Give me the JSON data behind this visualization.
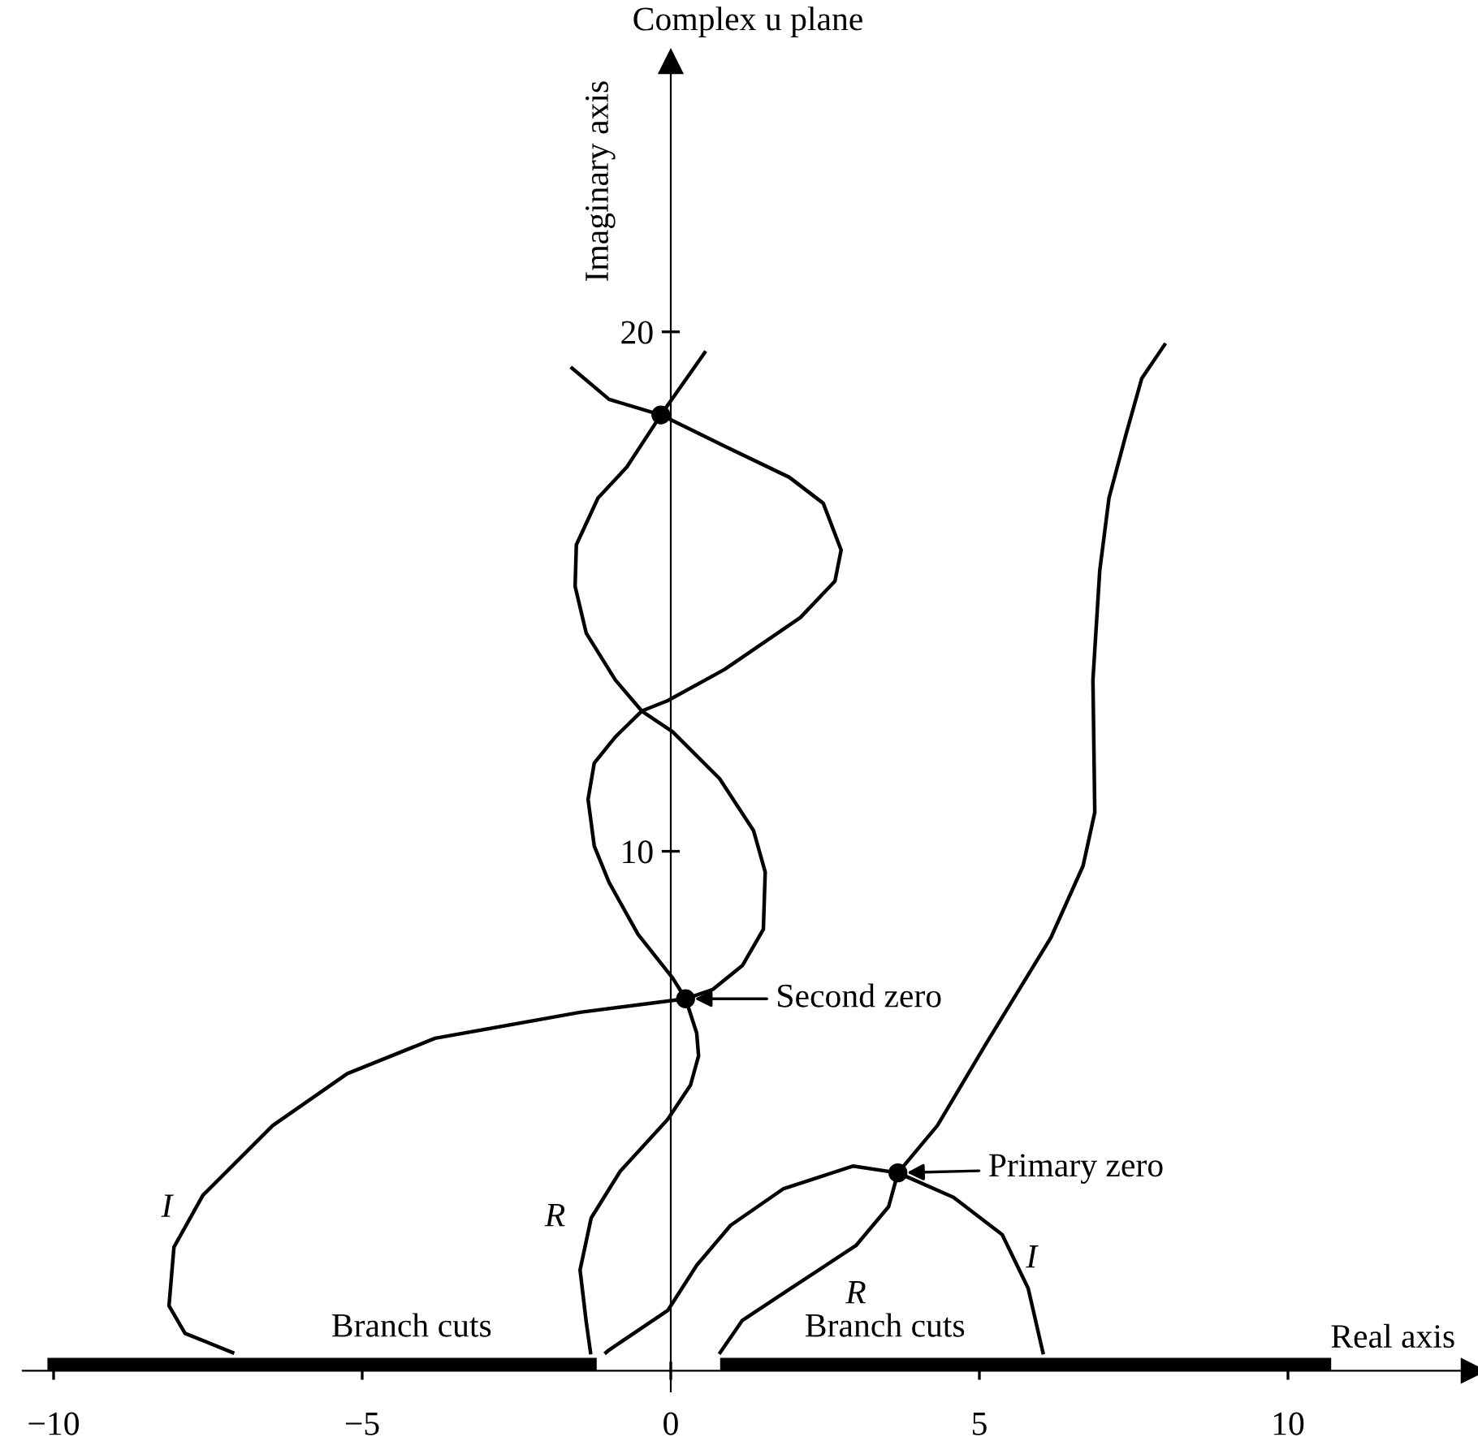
{
  "chart_data": {
    "type": "line",
    "title": "Complex u plane",
    "xlabel": "Real axis",
    "ylabel": "Imaginary axis",
    "xlim": [
      -10.5,
      13
    ],
    "ylim": [
      -0.4,
      25.2
    ],
    "xticks": [
      {
        "value": -10,
        "label": "−10"
      },
      {
        "value": -5,
        "label": "−5"
      },
      0,
      5,
      10
    ],
    "yticks": [
      10,
      20
    ],
    "series": [
      {
        "color": "#000000",
        "x": [
          -1.6,
          -1.0,
          -0.16,
          0.87,
          1.92,
          2.47,
          2.76,
          2.66,
          2.1,
          0.87,
          -0.05,
          -0.47,
          -0.9,
          -1.24,
          -1.34,
          -1.24,
          -1.0,
          -0.53,
          0.03,
          0.24,
          0.42,
          0.45,
          0.32,
          -0.05,
          -0.82,
          -1.29,
          -1.47,
          -1.37,
          -1.3
        ],
        "values": [
          19.3,
          18.7,
          18.4,
          17.8,
          17.2,
          16.7,
          15.8,
          15.2,
          14.5,
          13.5,
          12.9,
          12.7,
          12.2,
          11.7,
          11.0,
          10.1,
          9.4,
          8.4,
          7.56,
          7.16,
          6.5,
          6.06,
          5.5,
          4.84,
          3.84,
          2.94,
          1.94,
          0.94,
          0.35
        ]
      },
      {
        "color": "#000000",
        "x": [
          0.55,
          -0.16,
          -0.71,
          -1.18,
          -1.53,
          -1.55,
          -1.37,
          -0.9,
          -0.47,
          0.03,
          0.79,
          1.34,
          1.53,
          1.5,
          1.16,
          0.68,
          0.24,
          -1.47,
          -3.82,
          -5.24,
          -6.45,
          -7.58,
          -8.05,
          -8.13,
          -7.87,
          -7.1
        ],
        "values": [
          19.6,
          18.4,
          17.4,
          16.8,
          15.9,
          15.1,
          14.2,
          13.3,
          12.7,
          12.3,
          11.4,
          10.4,
          9.6,
          8.5,
          7.8,
          7.34,
          7.16,
          6.9,
          6.4,
          5.72,
          4.72,
          3.38,
          2.38,
          1.25,
          0.72,
          0.35
        ]
      },
      {
        "color": "#000000",
        "x": [
          -1.05,
          -1.0,
          -0.05,
          0.42,
          0.97,
          1.82,
          2.95,
          3.68,
          4.58,
          5.37,
          5.79,
          6.03
        ],
        "values": [
          0.35,
          0.4,
          1.16,
          2.03,
          2.8,
          3.5,
          3.94,
          3.81,
          3.34,
          2.62,
          1.59,
          0.35
        ]
      },
      {
        "color": "#000000",
        "x": [
          0.8,
          1.16,
          1.95,
          3.0,
          3.53,
          3.68,
          4.32,
          5.1,
          6.16,
          6.68,
          6.87,
          6.84,
          6.95,
          7.1,
          7.37,
          7.63,
          8.0
        ],
        "values": [
          0.35,
          0.97,
          1.59,
          2.41,
          3.16,
          3.81,
          4.72,
          6.28,
          8.34,
          9.72,
          10.75,
          13.3,
          15.4,
          16.8,
          18.0,
          19.1,
          19.75
        ]
      },
      {
        "type": "area",
        "color": "#000000",
        "x": [
          -10.1,
          -1.2
        ],
        "values": [
          0.25,
          0.25
        ]
      },
      {
        "type": "area",
        "color": "#000000",
        "x": [
          0.8,
          10.7
        ],
        "values": [
          0.25,
          0.25
        ]
      },
      {
        "type": "scatter",
        "color": "#000000",
        "marker": "circle",
        "x": [
          -0.16,
          0.24,
          3.68
        ],
        "values": [
          18.4,
          7.16,
          3.81
        ]
      }
    ],
    "annotations": [
      {
        "text": "Second zero",
        "x": 0.24,
        "y": 7.16
      },
      {
        "text": "Primary zero",
        "x": 3.68,
        "y": 3.81
      },
      {
        "text": "I",
        "x": -7.58,
        "y": 3.38
      },
      {
        "text": "R",
        "x": -1.29,
        "y": 2.94
      },
      {
        "text": "R",
        "x": 3.0,
        "y": 2.41
      },
      {
        "text": "I",
        "x": 5.37,
        "y": 2.62
      },
      {
        "text": "Branch cuts",
        "x": -4.2,
        "y": 0.25
      },
      {
        "text": "Branch cuts",
        "x": 3.47,
        "y": 0.25
      }
    ]
  }
}
